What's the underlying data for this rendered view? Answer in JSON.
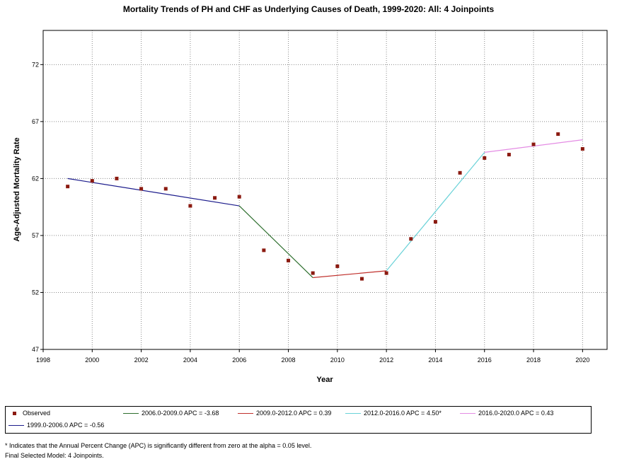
{
  "chart_data": {
    "type": "scatter",
    "title": "Mortality Trends of PH and CHF as Underlying Causes of Death, 1999-2020: All: 4 Joinpoints",
    "xlabel": "Year",
    "ylabel": "Age-Adjusted Mortality Rate",
    "xlim": [
      1998,
      2021
    ],
    "ylim": [
      47,
      75
    ],
    "xticks": [
      1998,
      2000,
      2002,
      2004,
      2006,
      2008,
      2010,
      2012,
      2014,
      2016,
      2018,
      2020
    ],
    "yticks": [
      47,
      52,
      57,
      62,
      67,
      72
    ],
    "grid": true,
    "observed": {
      "name": "Observed",
      "color": "#8b1a10",
      "x": [
        1999,
        2000,
        2001,
        2002,
        2003,
        2004,
        2005,
        2006,
        2007,
        2008,
        2009,
        2010,
        2011,
        2012,
        2013,
        2014,
        2015,
        2016,
        2017,
        2018,
        2019,
        2020
      ],
      "y": [
        61.3,
        61.8,
        62.0,
        61.1,
        61.1,
        59.6,
        60.3,
        60.4,
        55.7,
        54.8,
        53.7,
        54.3,
        53.2,
        53.7,
        56.7,
        58.2,
        62.5,
        63.8,
        64.1,
        65.0,
        65.9,
        64.6
      ]
    },
    "segments": [
      {
        "name": "1999.0-2006.0 APC  = -0.56",
        "color": "#1c1c8c",
        "x": [
          1999,
          2006
        ],
        "y": [
          62.0,
          59.6
        ]
      },
      {
        "name": "2006.0-2009.0 APC  = -3.68",
        "color": "#2d6e2d",
        "x": [
          2006,
          2009
        ],
        "y": [
          59.6,
          53.3
        ]
      },
      {
        "name": "2009.0-2012.0 APC  =  0.39",
        "color": "#c0302c",
        "x": [
          2009,
          2012
        ],
        "y": [
          53.3,
          53.9
        ]
      },
      {
        "name": "2012.0-2016.0 APC  =  4.50*",
        "color": "#6ad2d8",
        "x": [
          2012,
          2016
        ],
        "y": [
          53.9,
          64.3
        ]
      },
      {
        "name": "2016.0-2020.0 APC  =  0.43",
        "color": "#e48ce4",
        "x": [
          2016,
          2020
        ],
        "y": [
          64.3,
          65.4
        ]
      }
    ]
  },
  "legend": {
    "observed_label": "Observed",
    "seg1_label": "1999.0-2006.0 APC  = -0.56",
    "seg2_label": "2006.0-2009.0 APC  = -3.68",
    "seg3_label": "2009.0-2012.0 APC  =  0.39",
    "seg4_label": "2012.0-2016.0 APC  =  4.50*",
    "seg5_label": "2016.0-2020.0 APC  =  0.43"
  },
  "footnotes": {
    "line1": "* Indicates that the Annual Percent Change (APC) is significantly different from zero at the alpha = 0.05 level.",
    "line2": "Final Selected Model: 4 Joinpoints."
  }
}
